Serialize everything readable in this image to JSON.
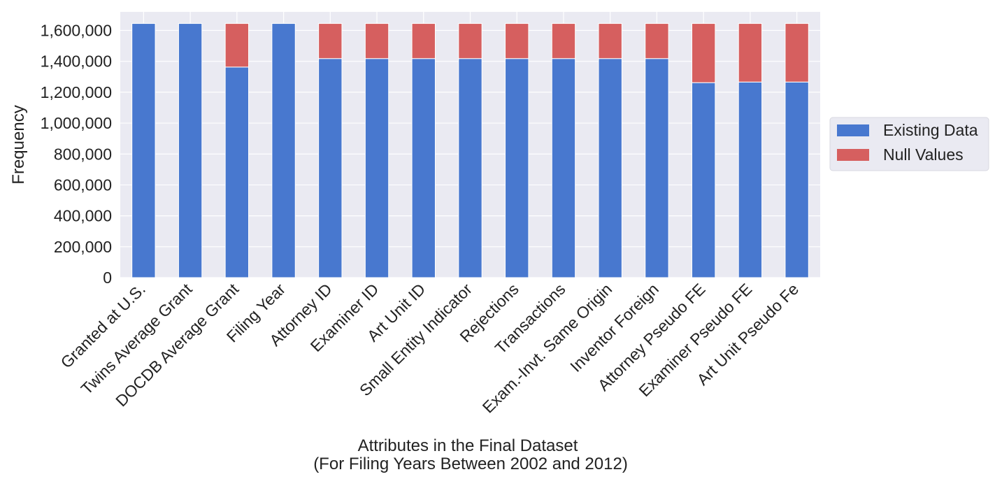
{
  "chart_data": {
    "type": "bar",
    "stacked": true,
    "categories": [
      "Granted at U.S.",
      "Twins Average Grant",
      "DOCDB Average Grant",
      "Filing Year",
      "Attorney ID",
      "Examiner ID",
      "Art Unit ID",
      "Small Entity Indicator",
      "Rejections",
      "Transactions",
      "Exam.-Invt. Same Origin",
      "Inventor Foreign",
      "Attorney Pseudo FE",
      "Examiner Pseudo FE",
      "Art Unit Pseudo Fe"
    ],
    "series": [
      {
        "name": "Existing Data",
        "color": "#4878cf",
        "values": [
          1645000,
          1645000,
          1363000,
          1645000,
          1418000,
          1418000,
          1418000,
          1418000,
          1418000,
          1418000,
          1418000,
          1418000,
          1262000,
          1266000,
          1266000
        ]
      },
      {
        "name": "Null Values",
        "color": "#d65f5f",
        "values": [
          0,
          0,
          282000,
          0,
          227000,
          227000,
          227000,
          227000,
          227000,
          227000,
          227000,
          227000,
          383000,
          379000,
          379000
        ]
      }
    ],
    "xlabel_line1": "Attributes in the Final Dataset",
    "xlabel_line2": "(For Filing Years Between 2002 and 2012)",
    "ylabel": "Frequency",
    "ylim": [
      0,
      1720000
    ],
    "yticks": [
      0,
      200000,
      400000,
      600000,
      800000,
      1000000,
      1200000,
      1400000,
      1600000
    ],
    "ytick_labels": [
      "0",
      "200,000",
      "400,000",
      "600,000",
      "800,000",
      "1,000,000",
      "1,200,000",
      "1,400,000",
      "1,600,000"
    ],
    "grid": true,
    "legend_position": "right, outside plot",
    "background_color": "#eaeaf2",
    "grid_color": "#ffffff"
  }
}
